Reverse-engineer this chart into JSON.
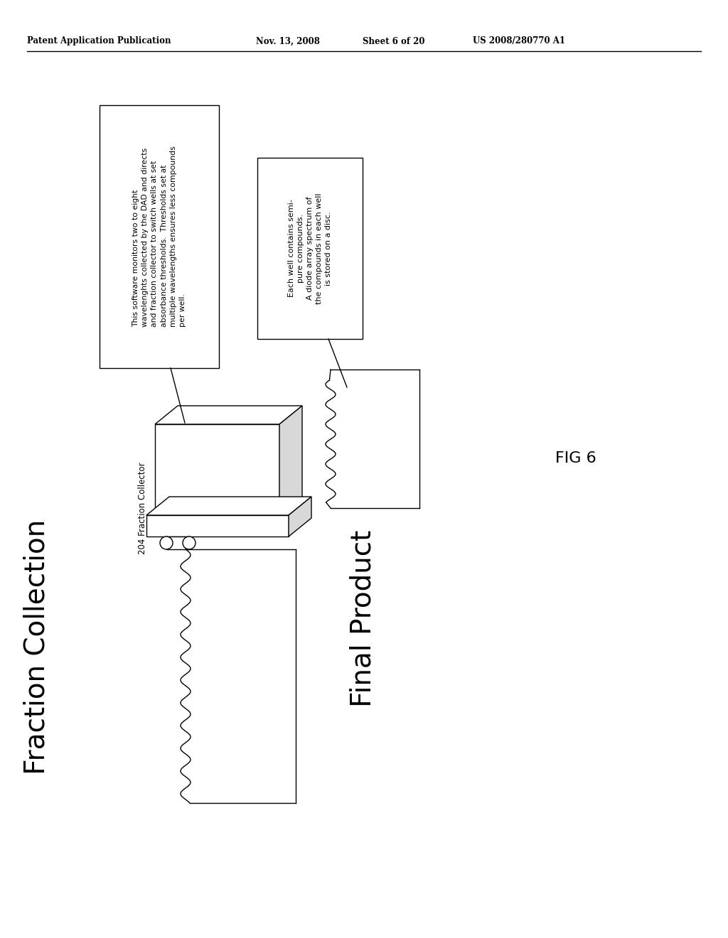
{
  "background_color": "#ffffff",
  "header_text": "Patent Application Publication",
  "header_date": "Nov. 13, 2008",
  "header_sheet": "Sheet 6 of 20",
  "header_patent": "US 2008/280770 A1",
  "fig_label": "FIG 6",
  "fraction_collection_label": "Fraction Collection",
  "final_product_label": "Final Product",
  "label_204": "204 Fraction Collector",
  "callout_box1_lines": [
    "This software monitors two to eight",
    "wavelenghts collected by the DAD and directs",
    "and fraction collector to switch wells at set",
    "absorbance thresholds.  Thresholds set at",
    "multiple wavelengths ensures less compounds",
    "per well."
  ],
  "callout_box2_lines": [
    "Each well contains semi-",
    "pure compounds.",
    "A diode array spectrum of",
    "the compounds in each well",
    "is stored on a disc."
  ]
}
